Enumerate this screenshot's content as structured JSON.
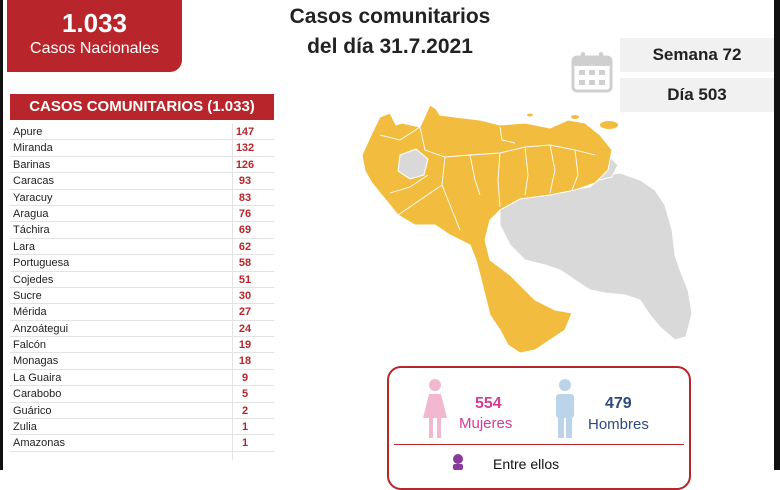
{
  "header": {
    "total_value": "1.033",
    "total_label": "Casos Nacionales",
    "title_line1": "Casos comunitarios",
    "title_line2": "del día 31.7.2021",
    "week": "Semana 72",
    "day": "Día 503"
  },
  "cases": {
    "heading": "CASOS COMUNITARIOS (1.033)",
    "rows": [
      {
        "state": "Apure",
        "count": "147"
      },
      {
        "state": "Miranda",
        "count": "132"
      },
      {
        "state": "Barinas",
        "count": "126"
      },
      {
        "state": "Caracas",
        "count": "93"
      },
      {
        "state": "Yaracuy",
        "count": "83"
      },
      {
        "state": "Aragua",
        "count": "76"
      },
      {
        "state": "Táchira",
        "count": "69"
      },
      {
        "state": "Lara",
        "count": "62"
      },
      {
        "state": "Portuguesa",
        "count": "58"
      },
      {
        "state": "Cojedes",
        "count": "51"
      },
      {
        "state": "Sucre",
        "count": "30"
      },
      {
        "state": "Mérida",
        "count": "27"
      },
      {
        "state": "Anzoátegui",
        "count": "24"
      },
      {
        "state": "Falcón",
        "count": "19"
      },
      {
        "state": "Monagas",
        "count": "18"
      },
      {
        "state": "La Guaira",
        "count": "9"
      },
      {
        "state": "Carabobo",
        "count": "5"
      },
      {
        "state": "Guárico",
        "count": "2"
      },
      {
        "state": "Zulia",
        "count": "1"
      },
      {
        "state": "Amazonas",
        "count": "1"
      }
    ]
  },
  "gender": {
    "female_count": "554",
    "female_label": "Mujeres",
    "male_count": "479",
    "male_label": "Hombres",
    "extra_label": "Entre ellos"
  },
  "colors": {
    "accent_red": "#b8262b",
    "map_yellow": "#f2bd3f",
    "map_grey": "#d9d9d9",
    "female_pink": "#d63c96",
    "male_blue": "#2e4a7d"
  },
  "icons": [
    "calendar-icon",
    "female-icon",
    "male-icon",
    "person-icon"
  ]
}
